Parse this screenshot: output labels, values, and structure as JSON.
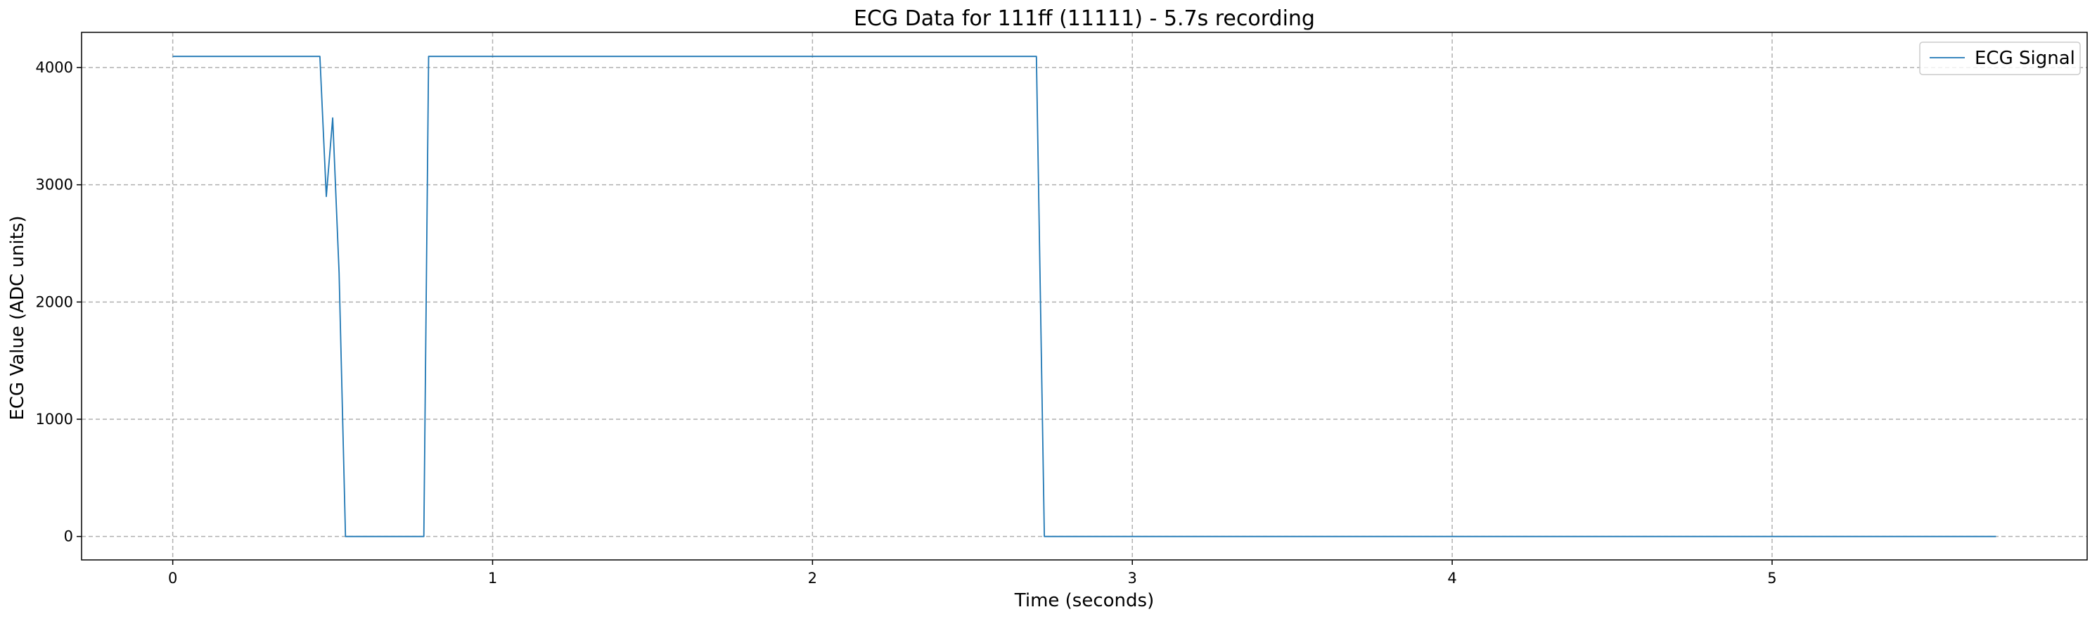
{
  "chart_data": {
    "type": "line",
    "title": "ECG Data for 111ff (11111) - 5.7s recording",
    "xlabel": "Time (seconds)",
    "ylabel": "ECG Value (ADC units)",
    "xlim": [
      -0.285,
      5.985
    ],
    "ylim": [
      -200,
      4300
    ],
    "x_ticks": [
      0,
      1,
      2,
      3,
      4,
      5
    ],
    "y_ticks": [
      0,
      1000,
      2000,
      3000,
      4000
    ],
    "grid": true,
    "legend_position": "top-right",
    "series": [
      {
        "name": "ECG Signal",
        "color": "#1f77b4",
        "x": [
          0,
          0.46,
          0.48,
          0.5,
          0.52,
          0.54,
          0.785,
          0.8,
          2.7,
          2.725,
          5.7
        ],
        "y": [
          4095,
          4095,
          2900,
          3570,
          2250,
          0,
          0,
          4095,
          4095,
          0,
          0
        ]
      }
    ]
  }
}
